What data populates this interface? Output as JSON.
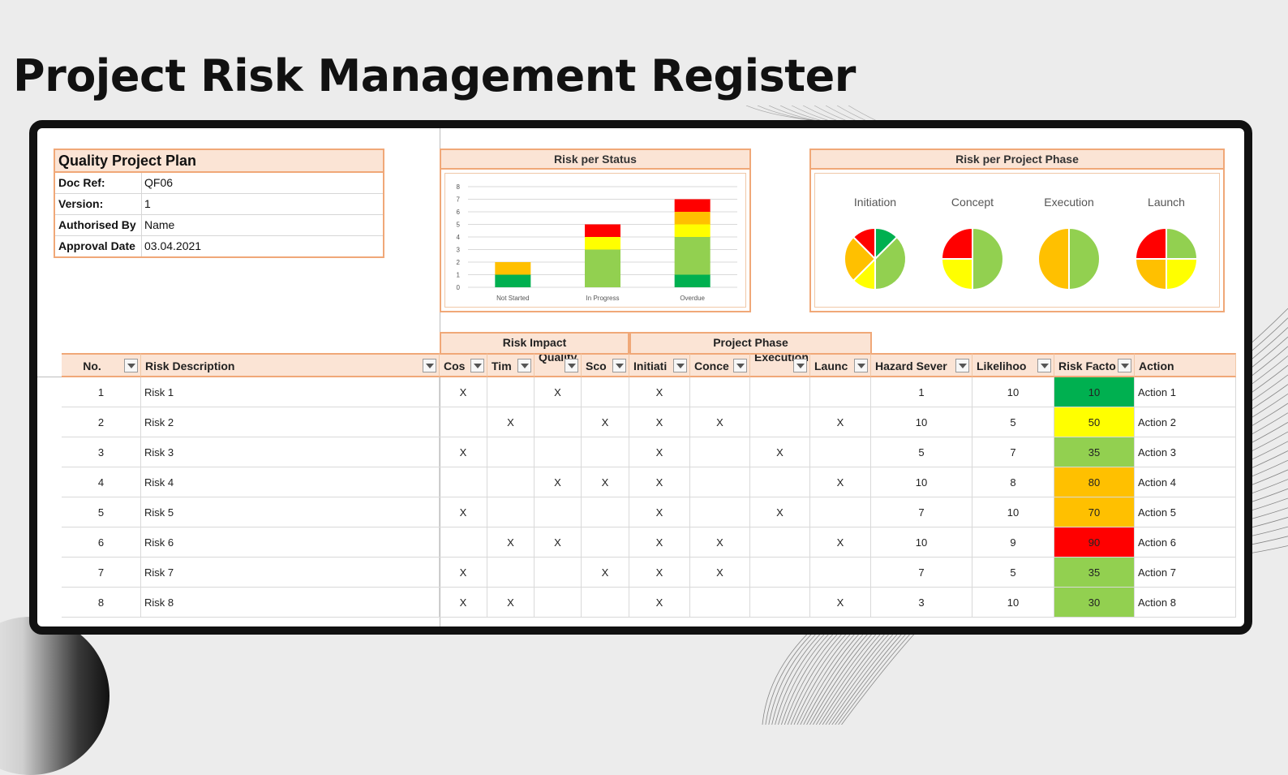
{
  "page_title": "Project Risk Management Register",
  "info": {
    "title": "Quality Project Plan",
    "rows": [
      {
        "key": "Doc Ref:",
        "value": "QF06"
      },
      {
        "key": "Version:",
        "value": "1"
      },
      {
        "key": "Authorised By",
        "value": "Name"
      },
      {
        "key": "Approval Date",
        "value": "03.04.2021"
      }
    ]
  },
  "colors": {
    "red": "#ff0000",
    "orange": "#ffc000",
    "yellow": "#ffff00",
    "light_green": "#92d050",
    "green": "#00b050",
    "header_fill": "#fbe4d5",
    "header_border": "#f0a878"
  },
  "chart_data": [
    {
      "type": "bar",
      "title": "Risk per Status",
      "stacked": true,
      "categories": [
        "Not Started",
        "In Progress",
        "Overdue"
      ],
      "ylim": [
        0,
        8
      ],
      "yticks": [
        "0",
        "1",
        "2",
        "3",
        "4",
        "5",
        "6",
        "7",
        "8"
      ],
      "grid": true,
      "series": [
        {
          "color": "#00b050",
          "values": [
            1,
            0,
            1
          ]
        },
        {
          "color": "#92d050",
          "values": [
            0,
            3,
            3
          ]
        },
        {
          "color": "#ffff00",
          "values": [
            0,
            1,
            1
          ]
        },
        {
          "color": "#ffc000",
          "values": [
            1,
            0,
            1
          ]
        },
        {
          "color": "#ff0000",
          "values": [
            0,
            1,
            1
          ]
        }
      ]
    },
    {
      "type": "pie",
      "title": "Risk per Project Phase",
      "pies": [
        {
          "label": "Initiation",
          "slices": [
            {
              "color": "#00b050",
              "value": 1
            },
            {
              "color": "#92d050",
              "value": 3
            },
            {
              "color": "#ffff00",
              "value": 1
            },
            {
              "color": "#ffc000",
              "value": 2
            },
            {
              "color": "#ff0000",
              "value": 1
            }
          ]
        },
        {
          "label": "Concept",
          "slices": [
            {
              "color": "#92d050",
              "value": 2
            },
            {
              "color": "#ffff00",
              "value": 1
            },
            {
              "color": "#ff0000",
              "value": 1
            }
          ]
        },
        {
          "label": "Execution",
          "slices": [
            {
              "color": "#92d050",
              "value": 1
            },
            {
              "color": "#ffc000",
              "value": 1
            }
          ]
        },
        {
          "label": "Launch",
          "slices": [
            {
              "color": "#92d050",
              "value": 1
            },
            {
              "color": "#ffff00",
              "value": 1
            },
            {
              "color": "#ffc000",
              "value": 1
            },
            {
              "color": "#ff0000",
              "value": 1
            }
          ]
        }
      ]
    }
  ],
  "table": {
    "group_risk_impact": "Risk Impact",
    "group_project_phase": "Project Phase",
    "headers": [
      "No.",
      "Risk Description",
      "Cos",
      "Tim",
      "Quality",
      "Sco",
      "Initiati",
      "Conce",
      "Execution",
      "Launc",
      "Hazard Sever",
      "Likelihoo",
      "Risk Facto",
      "Action"
    ],
    "mark": "X",
    "rows": [
      {
        "no": "1",
        "desc": "Risk 1",
        "marks": [
          1,
          0,
          1,
          0,
          1,
          0,
          0,
          0
        ],
        "hazard": "1",
        "likelihood": "10",
        "factor": "10",
        "factor_color": "#00b050",
        "action": "Action 1"
      },
      {
        "no": "2",
        "desc": "Risk 2",
        "marks": [
          0,
          1,
          0,
          1,
          1,
          1,
          0,
          1
        ],
        "hazard": "10",
        "likelihood": "5",
        "factor": "50",
        "factor_color": "#ffff00",
        "action": "Action 2"
      },
      {
        "no": "3",
        "desc": "Risk 3",
        "marks": [
          1,
          0,
          0,
          0,
          1,
          0,
          1,
          0
        ],
        "hazard": "5",
        "likelihood": "7",
        "factor": "35",
        "factor_color": "#92d050",
        "action": "Action 3"
      },
      {
        "no": "4",
        "desc": "Risk 4",
        "marks": [
          0,
          0,
          1,
          1,
          1,
          0,
          0,
          1
        ],
        "hazard": "10",
        "likelihood": "8",
        "factor": "80",
        "factor_color": "#ffc000",
        "action": "Action 4"
      },
      {
        "no": "5",
        "desc": "Risk 5",
        "marks": [
          1,
          0,
          0,
          0,
          1,
          0,
          1,
          0
        ],
        "hazard": "7",
        "likelihood": "10",
        "factor": "70",
        "factor_color": "#ffc000",
        "action": "Action 5"
      },
      {
        "no": "6",
        "desc": "Risk 6",
        "marks": [
          0,
          1,
          1,
          0,
          1,
          1,
          0,
          1
        ],
        "hazard": "10",
        "likelihood": "9",
        "factor": "90",
        "factor_color": "#ff0000",
        "action": "Action 6"
      },
      {
        "no": "7",
        "desc": "Risk 7",
        "marks": [
          1,
          0,
          0,
          1,
          1,
          1,
          0,
          0
        ],
        "hazard": "7",
        "likelihood": "5",
        "factor": "35",
        "factor_color": "#92d050",
        "action": "Action 7"
      },
      {
        "no": "8",
        "desc": "Risk 8",
        "marks": [
          1,
          1,
          0,
          0,
          1,
          0,
          0,
          1
        ],
        "hazard": "3",
        "likelihood": "10",
        "factor": "30",
        "factor_color": "#92d050",
        "action": "Action 8"
      }
    ]
  }
}
